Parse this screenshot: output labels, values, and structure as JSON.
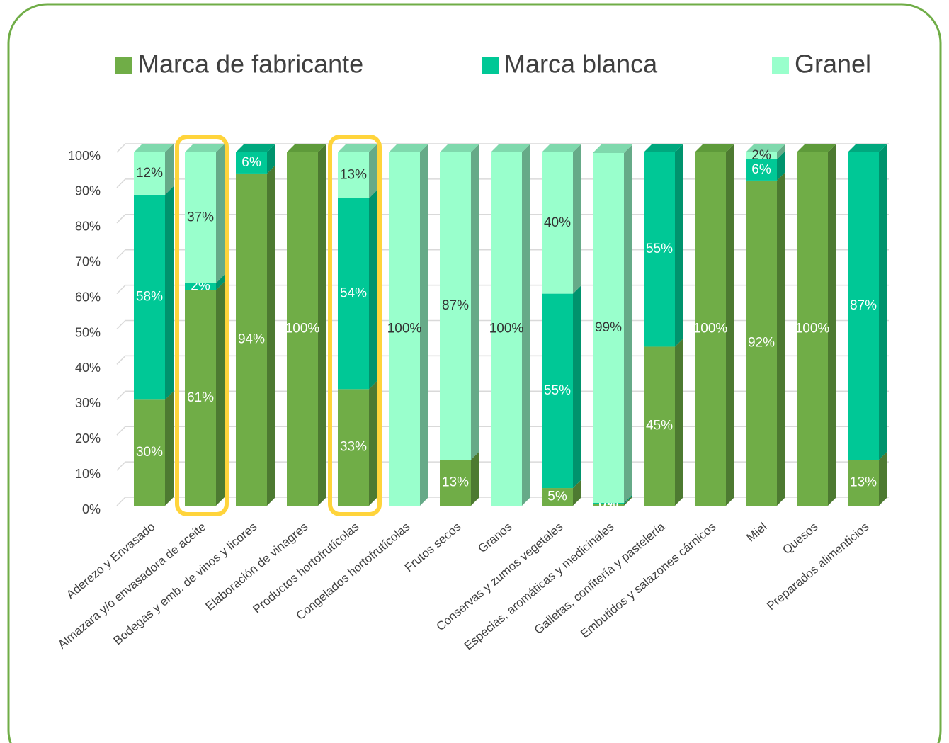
{
  "chart_data": {
    "type": "bar3d_stacked",
    "categories": [
      "Aderezo y Envasado",
      "Almazara y/o envasadora de aceite",
      "Bodegas y emb. de vinos y licores",
      "Elaboración de vinagres",
      "Productos hortofrutícolas",
      "Congelados hortofrutícolas",
      "Frutos secos",
      "Granos",
      "Conservas y zumos vegetales",
      "Especias, aromáticas y medicinales",
      "Galletas, confitería y pastelería",
      "Embutidos y salazones cárnicos",
      "Miel",
      "Quesos",
      "Preparados alimenticios"
    ],
    "series": [
      {
        "name": "Marca de fabricante",
        "color": "#70ad47",
        "side": "#4d7a31",
        "top": "#5e9a3a",
        "label_color": "#ffffff",
        "values": [
          30,
          61,
          94,
          100,
          33,
          null,
          13,
          null,
          5,
          0.4,
          45,
          100,
          92,
          100,
          13
        ],
        "value_labels": [
          "30%",
          "61%",
          "94%",
          "100%",
          "33%",
          null,
          "13%",
          null,
          "5%",
          "0%",
          "45%",
          "100%",
          "92%",
          "100%",
          "13%"
        ]
      },
      {
        "name": "Marca blanca",
        "color": "#00c896",
        "side": "#00936d",
        "top": "#00a87e",
        "label_color": "#ffffff",
        "values": [
          58,
          2,
          6,
          null,
          54,
          null,
          null,
          null,
          55,
          0.4,
          55,
          null,
          6,
          null,
          87
        ],
        "value_labels": [
          "58%",
          "2%",
          "6%",
          null,
          "54%",
          null,
          null,
          null,
          "55%",
          "0%",
          "55%",
          null,
          "6%",
          null,
          "87%"
        ]
      },
      {
        "name": "Granel",
        "color": "#99ffcc",
        "side": "#66aa88",
        "top": "#7fd9ad",
        "label_color": "#333333",
        "values": [
          12,
          37,
          null,
          null,
          13,
          100,
          87,
          100,
          40,
          99,
          null,
          null,
          2,
          null,
          null
        ],
        "value_labels": [
          "12%",
          "37%",
          null,
          null,
          "13%",
          "100%",
          "87%",
          "100%",
          "40%",
          "99%",
          null,
          null,
          "2%",
          null,
          null
        ]
      }
    ],
    "ylim": [
      0,
      100
    ],
    "yticks": [
      {
        "value": 0,
        "label": "0%"
      },
      {
        "value": 10,
        "label": "10%"
      },
      {
        "value": 20,
        "label": "20%"
      },
      {
        "value": 30,
        "label": "30%"
      },
      {
        "value": 40,
        "label": "40%"
      },
      {
        "value": 50,
        "label": "50%"
      },
      {
        "value": 60,
        "label": "60%"
      },
      {
        "value": 70,
        "label": "70%"
      },
      {
        "value": 80,
        "label": "80%"
      },
      {
        "value": 90,
        "label": "90%"
      },
      {
        "value": 100,
        "label": "100%"
      }
    ],
    "grid": true,
    "legend": "top"
  }
}
